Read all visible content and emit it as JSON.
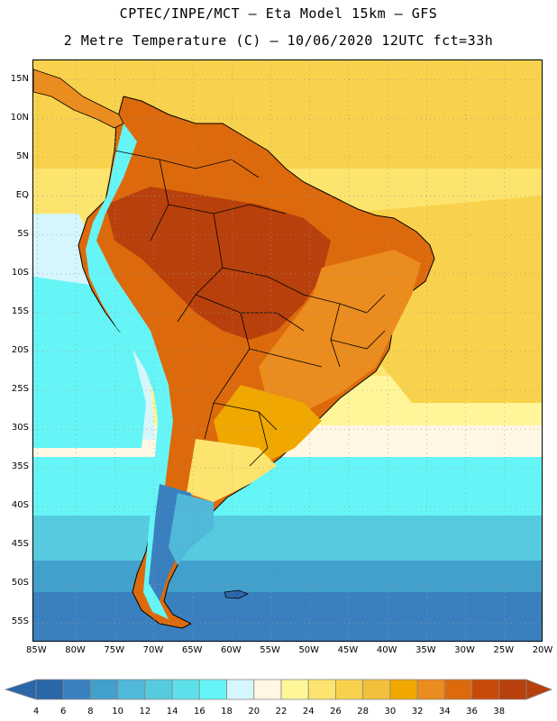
{
  "header": {
    "title_line1": "CPTEC/INPE/MCT –  Eta Model 15km – GFS",
    "title_line2": "2 Metre Temperature (C) – 10/06/2020 12UTC fct=33h"
  },
  "axes": {
    "lat_labels": [
      "15N",
      "10N",
      "5N",
      "EQ",
      "5S",
      "10S",
      "15S",
      "20S",
      "25S",
      "30S",
      "35S",
      "40S",
      "45S",
      "50S",
      "55S"
    ],
    "lat_values": [
      15,
      10,
      5,
      0,
      -5,
      -10,
      -15,
      -20,
      -25,
      -30,
      -35,
      -40,
      -45,
      -50,
      -55
    ],
    "lon_labels": [
      "85W",
      "80W",
      "75W",
      "70W",
      "65W",
      "60W",
      "55W",
      "50W",
      "45W",
      "40W",
      "35W",
      "30W",
      "25W",
      "20W"
    ],
    "lon_values": [
      -85,
      -80,
      -75,
      -70,
      -65,
      -60,
      -55,
      -50,
      -45,
      -40,
      -35,
      -30,
      -25,
      -20
    ],
    "lat_range": [
      -57.5,
      17.5
    ],
    "lon_range": [
      -85.5,
      -20
    ]
  },
  "colorbar": {
    "labels": [
      "4",
      "6",
      "8",
      "10",
      "12",
      "14",
      "16",
      "18",
      "20",
      "22",
      "24",
      "26",
      "28",
      "30",
      "32",
      "34",
      "36",
      "38"
    ],
    "colors": [
      "#2a67a8",
      "#3a80bf",
      "#42a0cc",
      "#50b8d8",
      "#56cbe0",
      "#5ee0ea",
      "#66f5f6",
      "#d4f6fc",
      "#fff7e4",
      "#fff69a",
      "#fde46e",
      "#f8d24c",
      "#f2c03a",
      "#f0a800",
      "#eb8c1e",
      "#dc6a0c",
      "#c84a08",
      "#b8400c"
    ],
    "left_arrow_color": "#2a67a8",
    "right_arrow_color": "#b8400c"
  }
}
